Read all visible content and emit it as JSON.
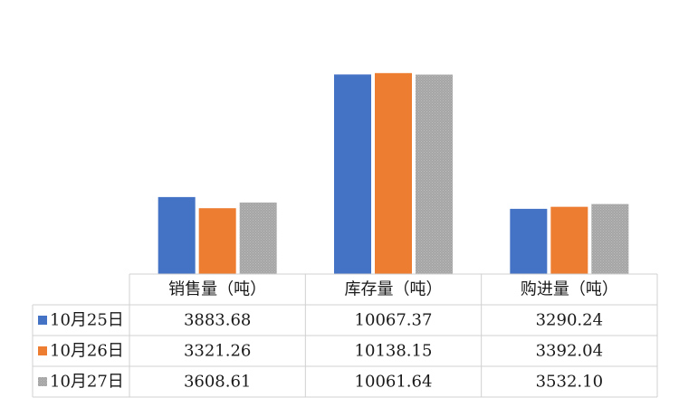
{
  "chart_data": {
    "type": "bar",
    "categories": [
      "销售量（吨）",
      "库存量（吨）",
      "购进量（吨）"
    ],
    "series": [
      {
        "name": "10月25日",
        "values": [
          3883.68,
          10067.37,
          3290.24
        ],
        "display": [
          "3883.68",
          "10067.37",
          "3290.24"
        ],
        "color": "#4472C4"
      },
      {
        "name": "10月26日",
        "values": [
          3321.26,
          10138.15,
          3392.04
        ],
        "display": [
          "3321.26",
          "10138.15",
          "3392.04"
        ],
        "color": "#ED7D31"
      },
      {
        "name": "10月27日",
        "values": [
          3608.61,
          10061.64,
          3532.1
        ],
        "display": [
          "3608.61",
          "10061.64",
          "3532.10"
        ],
        "color": "#A5A5A5"
      }
    ],
    "ylim": [
      0,
      12000
    ],
    "grid": false,
    "legend": "data-table"
  }
}
